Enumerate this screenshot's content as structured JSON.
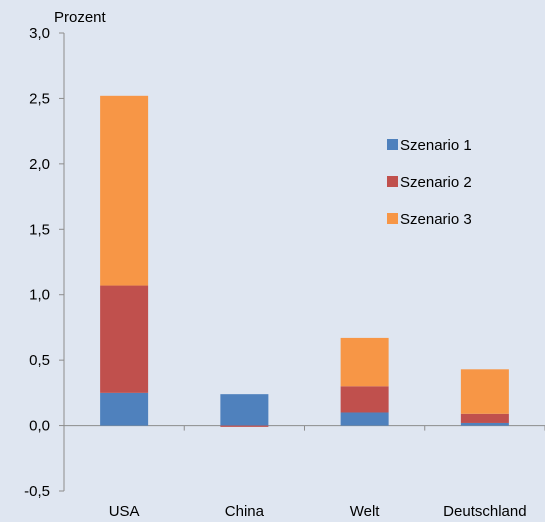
{
  "chart_data": {
    "type": "bar",
    "stacked": true,
    "ylabel": "Prozent",
    "ylim": [
      -0.5,
      3.0
    ],
    "yticks": [
      -0.5,
      0.0,
      0.5,
      1.0,
      1.5,
      2.0,
      2.5,
      3.0
    ],
    "ytick_labels": [
      "-0,5",
      "0,0",
      "0,5",
      "1,0",
      "1,5",
      "2,0",
      "2,5",
      "3,0"
    ],
    "categories": [
      "USA",
      "China",
      "Welt",
      "Deutschland"
    ],
    "series": [
      {
        "name": "Szenario 1",
        "color": "#4f81bd",
        "values": [
          0.25,
          0.24,
          0.1,
          0.02
        ]
      },
      {
        "name": "Szenario 2",
        "color": "#c0504d",
        "values": [
          0.82,
          -0.01,
          0.2,
          0.07
        ]
      },
      {
        "name": "Szenario 3",
        "color": "#f79646",
        "values": [
          1.45,
          0.0,
          0.37,
          0.34
        ]
      }
    ],
    "legend_position": "right",
    "grid": false,
    "background": "#dfe6f1"
  }
}
